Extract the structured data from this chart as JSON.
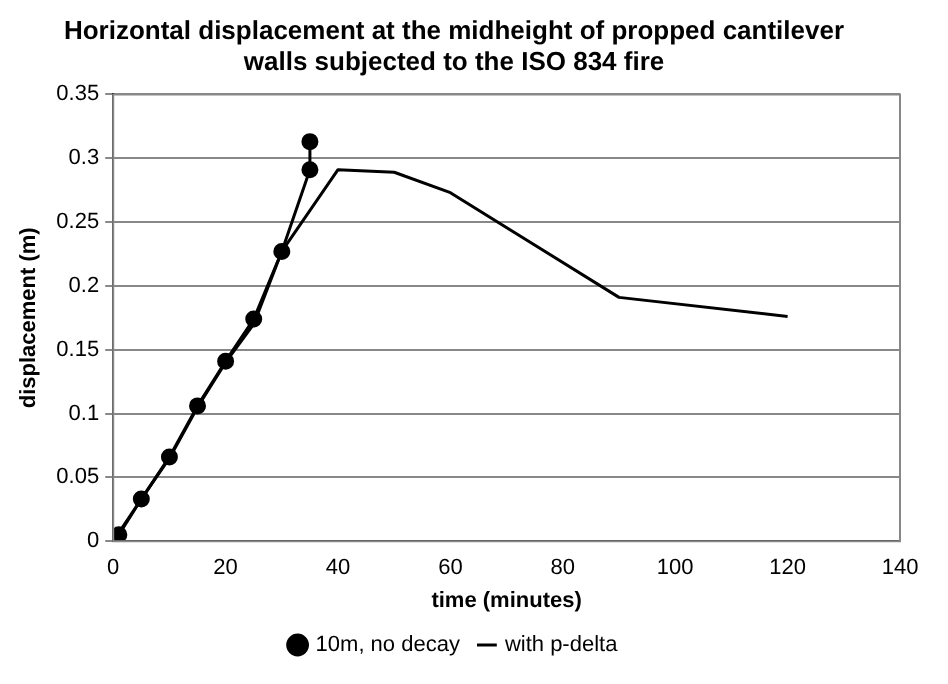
{
  "chart_data": {
    "type": "line",
    "title": "Horizontal displacement at the midheight of propped cantilever walls subjected to the ISO 834 fire",
    "xlabel": "time (minutes)",
    "ylabel": "displacement (m)",
    "xlim": [
      0,
      140
    ],
    "xticks": [
      0,
      20,
      40,
      60,
      80,
      100,
      120,
      140
    ],
    "ylim": [
      0,
      0.35
    ],
    "yticks": [
      0,
      0.05,
      0.1,
      0.15,
      0.2,
      0.25,
      0.3,
      0.35
    ],
    "grid": "y",
    "legend": "bottom",
    "series": [
      {
        "name": "10m, no decay",
        "color": "#000000",
        "marker": "circle",
        "x": [
          0,
          0.5,
          1,
          5,
          10,
          15,
          20,
          25,
          30,
          35,
          35
        ],
        "values": [
          0,
          0.003,
          0.005,
          0.033,
          0.066,
          0.106,
          0.141,
          0.174,
          0.227,
          0.291,
          0.313
        ]
      },
      {
        "name": "with p-delta",
        "color": "#000000",
        "marker": "none",
        "x": [
          0,
          5,
          10,
          15,
          20,
          25,
          30,
          40,
          50,
          60,
          90,
          120
        ],
        "values": [
          0,
          0.033,
          0.065,
          0.105,
          0.14,
          0.17,
          0.227,
          0.291,
          0.289,
          0.273,
          0.191,
          0.176
        ]
      }
    ]
  }
}
